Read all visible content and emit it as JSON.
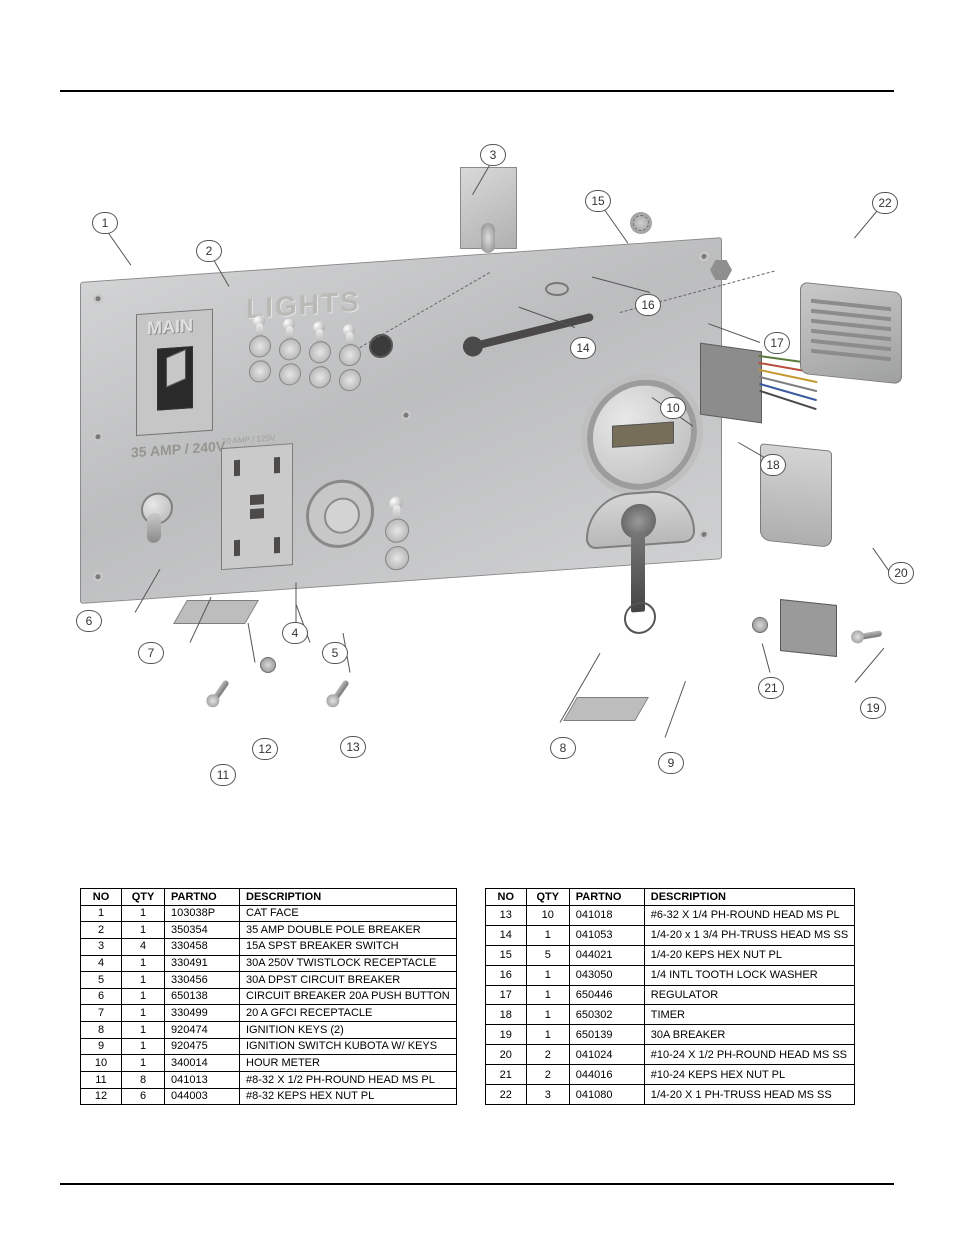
{
  "panel_labels": {
    "main": "MAIN",
    "lights": "LIGHTS",
    "amp_volt": "35 AMP / 240V",
    "gfci_small": "20 AMP / 125V"
  },
  "callouts": [
    "1",
    "2",
    "3",
    "4",
    "5",
    "6",
    "7",
    "8",
    "9",
    "10",
    "11",
    "12",
    "13",
    "14",
    "15",
    "16",
    "17",
    "18",
    "19",
    "20",
    "21",
    "22"
  ],
  "table_headers": {
    "no": "NO",
    "qty": "QTY",
    "partno": "PARTNO",
    "description": "DESCRIPTION"
  },
  "parts_left": [
    {
      "no": "1",
      "qty": "1",
      "partno": "103038P",
      "desc": "CAT FACE"
    },
    {
      "no": "2",
      "qty": "1",
      "partno": "350354",
      "desc": "35 AMP DOUBLE POLE BREAKER"
    },
    {
      "no": "3",
      "qty": "4",
      "partno": "330458",
      "desc": "15A SPST BREAKER SWITCH"
    },
    {
      "no": "4",
      "qty": "1",
      "partno": "330491",
      "desc": "30A 250V TWISTLOCK RECEPTACLE"
    },
    {
      "no": "5",
      "qty": "1",
      "partno": "330456",
      "desc": "30A DPST CIRCUIT BREAKER"
    },
    {
      "no": "6",
      "qty": "1",
      "partno": "650138",
      "desc": "CIRCUIT BREAKER 20A PUSH BUTTON"
    },
    {
      "no": "7",
      "qty": "1",
      "partno": "330499",
      "desc": "20 A GFCI RECEPTACLE"
    },
    {
      "no": "8",
      "qty": "1",
      "partno": "920474",
      "desc": "IGNITION KEYS (2)"
    },
    {
      "no": "9",
      "qty": "1",
      "partno": "920475",
      "desc": "IGNITION SWITCH KUBOTA W/ KEYS"
    },
    {
      "no": "10",
      "qty": "1",
      "partno": "340014",
      "desc": "HOUR METER"
    },
    {
      "no": "11",
      "qty": "8",
      "partno": "041013",
      "desc": "#8-32 X 1/2 PH-ROUND HEAD MS PL"
    },
    {
      "no": "12",
      "qty": "6",
      "partno": "044003",
      "desc": "#8-32 KEPS HEX NUT PL"
    }
  ],
  "parts_right": [
    {
      "no": "13",
      "qty": "10",
      "partno": "041018",
      "desc": "#6-32 X 1/4 PH-ROUND HEAD MS PL"
    },
    {
      "no": "14",
      "qty": "1",
      "partno": "041053",
      "desc": "1/4-20 x 1 3/4 PH-TRUSS HEAD MS SS"
    },
    {
      "no": "15",
      "qty": "5",
      "partno": "044021",
      "desc": "1/4-20 KEPS HEX NUT PL"
    },
    {
      "no": "16",
      "qty": "1",
      "partno": "043050",
      "desc": "1/4 INTL TOOTH LOCK WASHER"
    },
    {
      "no": "17",
      "qty": "1",
      "partno": "650446",
      "desc": "REGULATOR"
    },
    {
      "no": "18",
      "qty": "1",
      "partno": "650302",
      "desc": "TIMER"
    },
    {
      "no": "19",
      "qty": "1",
      "partno": "650139",
      "desc": "30A BREAKER"
    },
    {
      "no": "20",
      "qty": "2",
      "partno": "041024",
      "desc": "#10-24 X 1/2 PH-ROUND HEAD MS SS"
    },
    {
      "no": "21",
      "qty": "2",
      "partno": "044016",
      "desc": "#10-24 KEPS HEX NUT PL"
    },
    {
      "no": "22",
      "qty": "3",
      "partno": "041080",
      "desc": "1/4-20 X 1 PH-TRUSS HEAD MS SS"
    }
  ],
  "wire_colors": [
    "#5a7a3b",
    "#b64d3b",
    "#c49a2e",
    "#7e7e7e",
    "#3b5aa0",
    "#4a4a4a"
  ]
}
